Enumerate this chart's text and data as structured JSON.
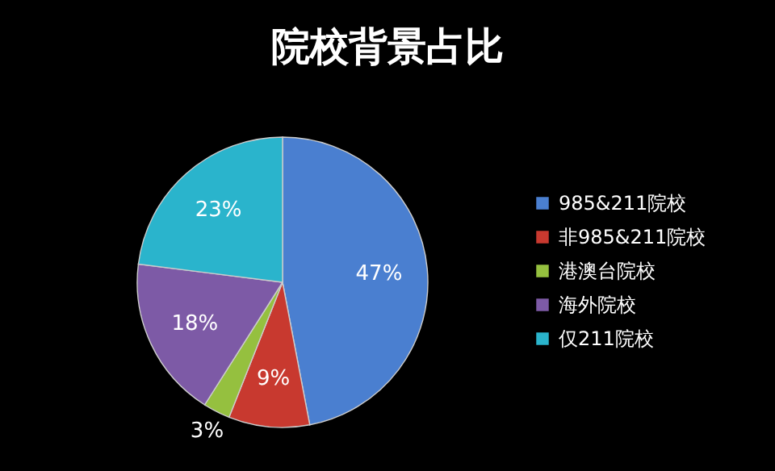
{
  "chart_data": {
    "type": "pie",
    "title": "院校背景占比",
    "categories": [
      "985&211院校",
      "非985&211院校",
      "港澳台院校",
      "海外院校",
      "仅211院校"
    ],
    "values": [
      47,
      9,
      3,
      18,
      23
    ],
    "value_labels": [
      "47%",
      "9%",
      "3%",
      "18%",
      "23%"
    ],
    "colors": [
      "#4a7fd0",
      "#c8392f",
      "#95c03f",
      "#7d5aa6",
      "#2ab4cc"
    ],
    "legend": "right"
  }
}
